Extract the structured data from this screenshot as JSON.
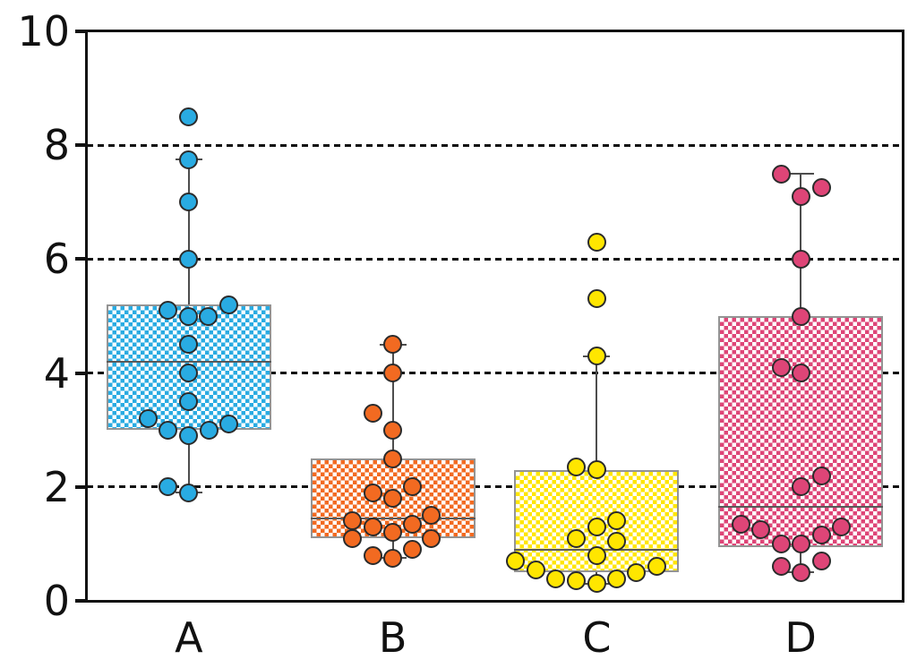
{
  "figure": {
    "background": "#ffffff",
    "title": ""
  },
  "chart_data": {
    "type": "box",
    "title": "",
    "xlabel": "",
    "ylabel": "",
    "categories": [
      "A",
      "B",
      "C",
      "D"
    ],
    "ylim": [
      0,
      10
    ],
    "yticks": [
      "0",
      "2",
      "4",
      "6",
      "8",
      "10"
    ],
    "grid_values": [
      2,
      4,
      6,
      8
    ],
    "grid_style": "dotted-horizontal",
    "legend": "none",
    "fill_pattern": "checkerboard",
    "styles": {
      "spine_color": "#111111",
      "grid_color": "#111111",
      "box_border_color": "#949494",
      "median_color": "#5a5a5a",
      "whisker_color": "#4d4d4d",
      "point_outline_color": "#2b2b2b"
    },
    "series": [
      {
        "name": "A",
        "color": "#29ABE2",
        "box": {
          "whisker_low": 1.9,
          "q1": 3.0,
          "median": 4.2,
          "q3": 5.2,
          "whisker_high": 7.75
        },
        "points": [
          {
            "v": 8.5,
            "dx": 0
          },
          {
            "v": 7.75,
            "dx": 0
          },
          {
            "v": 7.0,
            "dx": 0
          },
          {
            "v": 6.0,
            "dx": 0
          },
          {
            "v": 5.2,
            "dx": 45
          },
          {
            "v": 5.1,
            "dx": -23
          },
          {
            "v": 5.0,
            "dx": 0
          },
          {
            "v": 5.0,
            "dx": 22
          },
          {
            "v": 4.5,
            "dx": 0
          },
          {
            "v": 4.0,
            "dx": 0
          },
          {
            "v": 3.5,
            "dx": 0
          },
          {
            "v": 3.2,
            "dx": -45
          },
          {
            "v": 3.1,
            "dx": 45
          },
          {
            "v": 3.0,
            "dx": -23
          },
          {
            "v": 3.0,
            "dx": 23
          },
          {
            "v": 2.9,
            "dx": 0
          },
          {
            "v": 2.0,
            "dx": -23
          },
          {
            "v": 1.9,
            "dx": 0
          }
        ]
      },
      {
        "name": "B",
        "color": "#F26A21",
        "box": {
          "whisker_low": 0.75,
          "q1": 1.1,
          "median": 1.45,
          "q3": 2.5,
          "whisker_high": 4.5
        },
        "points": [
          {
            "v": 4.5,
            "dx": 0
          },
          {
            "v": 4.0,
            "dx": 0
          },
          {
            "v": 3.3,
            "dx": -22
          },
          {
            "v": 3.0,
            "dx": 0
          },
          {
            "v": 2.5,
            "dx": 0
          },
          {
            "v": 2.0,
            "dx": 22
          },
          {
            "v": 1.9,
            "dx": -22
          },
          {
            "v": 1.8,
            "dx": 0
          },
          {
            "v": 1.5,
            "dx": 43
          },
          {
            "v": 1.4,
            "dx": -45
          },
          {
            "v": 1.35,
            "dx": 22
          },
          {
            "v": 1.3,
            "dx": -22
          },
          {
            "v": 1.2,
            "dx": 0
          },
          {
            "v": 1.1,
            "dx": -45
          },
          {
            "v": 1.1,
            "dx": 43
          },
          {
            "v": 0.9,
            "dx": 22
          },
          {
            "v": 0.8,
            "dx": -22
          },
          {
            "v": 0.75,
            "dx": 0
          }
        ]
      },
      {
        "name": "C",
        "color": "#FFE600",
        "box": {
          "whisker_low": 0.3,
          "q1": 0.5,
          "median": 0.9,
          "q3": 2.3,
          "whisker_high": 4.3
        },
        "points": [
          {
            "v": 6.3,
            "dx": 0
          },
          {
            "v": 5.3,
            "dx": 0
          },
          {
            "v": 4.3,
            "dx": 0
          },
          {
            "v": 2.35,
            "dx": -23
          },
          {
            "v": 2.3,
            "dx": 0
          },
          {
            "v": 1.4,
            "dx": 22
          },
          {
            "v": 1.3,
            "dx": 0
          },
          {
            "v": 1.1,
            "dx": -23
          },
          {
            "v": 1.05,
            "dx": 22
          },
          {
            "v": 0.8,
            "dx": 0
          },
          {
            "v": 0.7,
            "dx": -91
          },
          {
            "v": 0.6,
            "dx": 67
          },
          {
            "v": 0.55,
            "dx": -68
          },
          {
            "v": 0.5,
            "dx": 44
          },
          {
            "v": 0.38,
            "dx": -46
          },
          {
            "v": 0.38,
            "dx": 22
          },
          {
            "v": 0.35,
            "dx": -23
          },
          {
            "v": 0.3,
            "dx": 0
          }
        ]
      },
      {
        "name": "D",
        "color": "#DE4577",
        "box": {
          "whisker_low": 0.5,
          "q1": 0.95,
          "median": 1.65,
          "q3": 5.0,
          "whisker_high": 7.5
        },
        "points": [
          {
            "v": 7.5,
            "dx": -22
          },
          {
            "v": 7.25,
            "dx": 23
          },
          {
            "v": 7.1,
            "dx": 0
          },
          {
            "v": 6.0,
            "dx": 0
          },
          {
            "v": 5.0,
            "dx": 0
          },
          {
            "v": 4.1,
            "dx": -22
          },
          {
            "v": 4.0,
            "dx": 0
          },
          {
            "v": 2.2,
            "dx": 23
          },
          {
            "v": 2.0,
            "dx": 0
          },
          {
            "v": 1.35,
            "dx": -67
          },
          {
            "v": 1.3,
            "dx": 45
          },
          {
            "v": 1.25,
            "dx": -45
          },
          {
            "v": 1.15,
            "dx": 23
          },
          {
            "v": 1.0,
            "dx": -22
          },
          {
            "v": 1.0,
            "dx": 0
          },
          {
            "v": 0.7,
            "dx": 23
          },
          {
            "v": 0.6,
            "dx": -22
          },
          {
            "v": 0.5,
            "dx": 0
          }
        ]
      }
    ]
  }
}
